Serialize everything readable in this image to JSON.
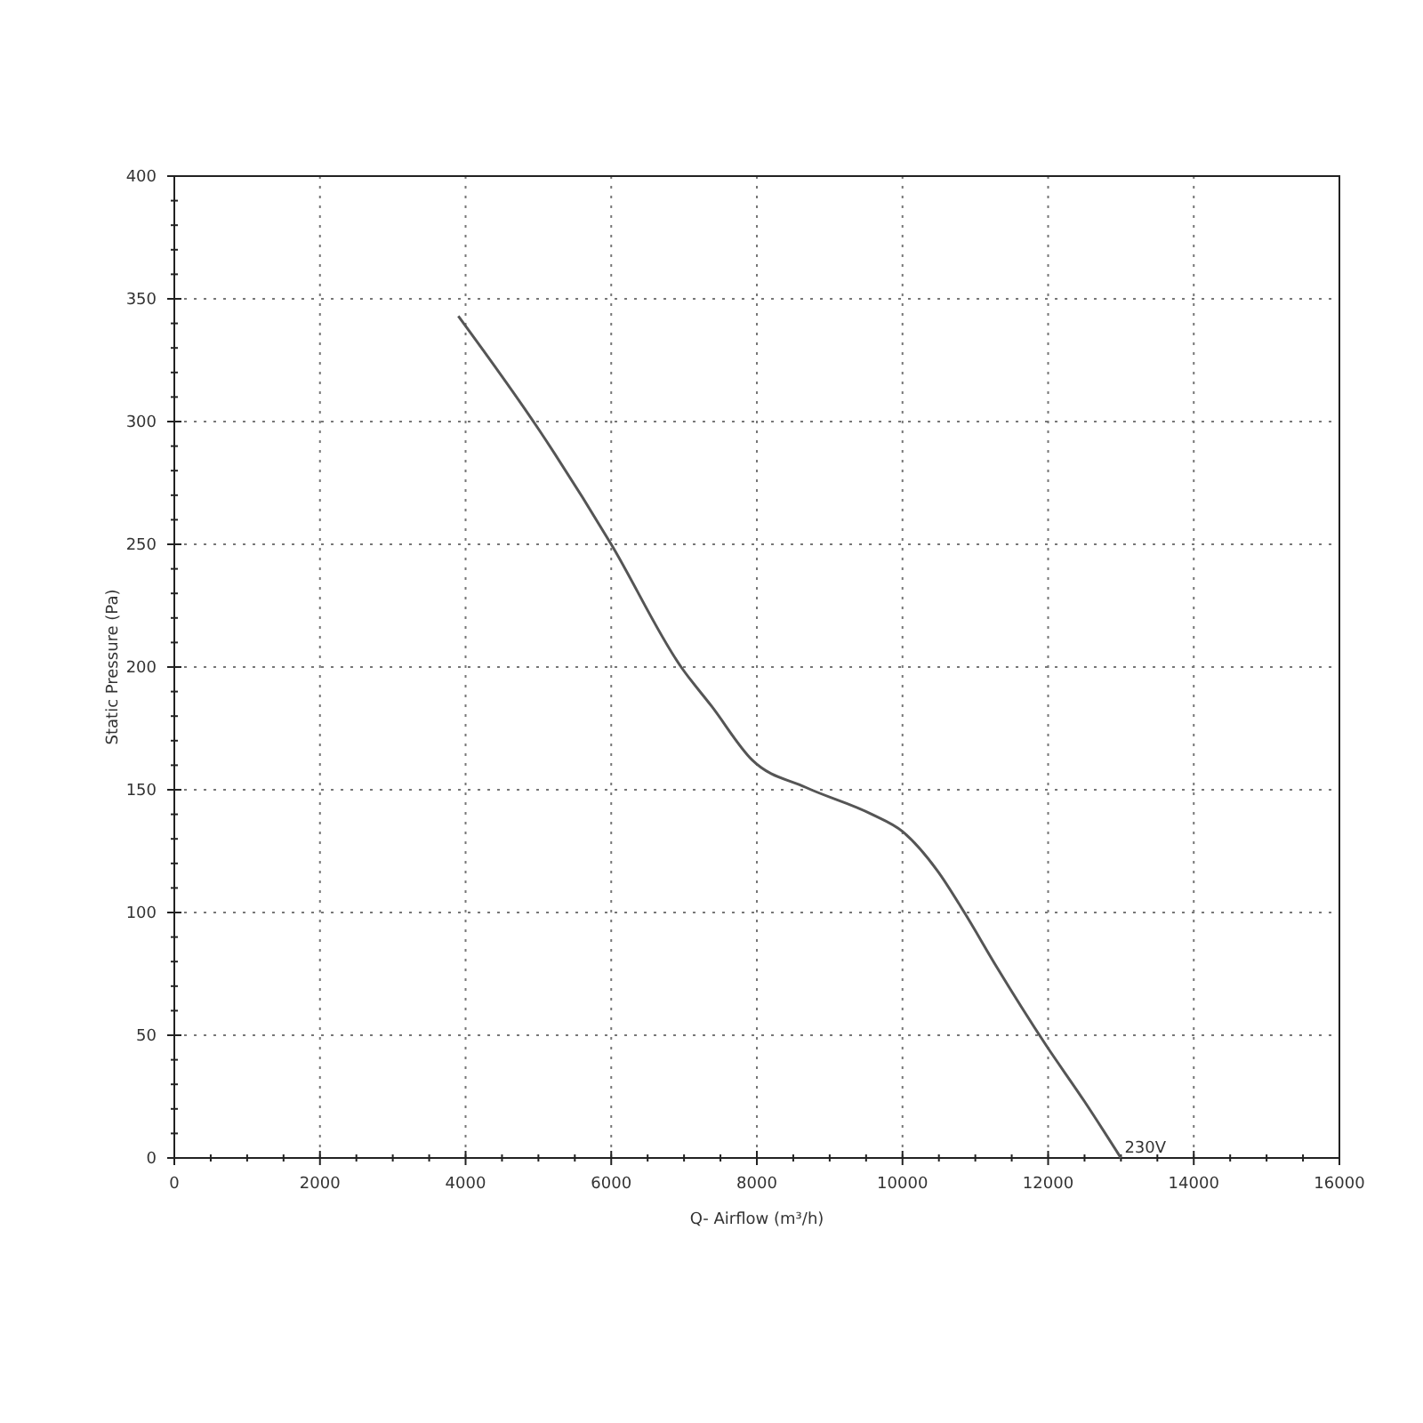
{
  "chart_data": {
    "type": "line",
    "xlabel": "Q- Airflow (m³/h)",
    "ylabel": "Static Pressure (Pa)",
    "xlim": [
      0,
      16000
    ],
    "ylim": [
      0,
      400
    ],
    "xticks": [
      0,
      2000,
      4000,
      6000,
      8000,
      10000,
      12000,
      14000,
      16000
    ],
    "yticks": [
      0,
      50,
      100,
      150,
      200,
      250,
      300,
      350,
      400
    ],
    "grid": true,
    "marker": "none",
    "line_style": "solid",
    "series": [
      {
        "color": "#555555",
        "x": [
          3900,
          5000,
          6000,
          6960,
          7380,
          7940,
          8670,
          9580,
          10000,
          10480,
          10850,
          11290,
          11970,
          12500,
          13000
        ],
        "values": [
          343,
          297,
          250,
          200,
          184,
          162,
          151,
          140,
          133,
          117,
          100,
          78,
          46,
          23,
          0
        ]
      }
    ],
    "annotations": [
      {
        "text": "230V",
        "x": 13000,
        "y": 0
      }
    ]
  }
}
